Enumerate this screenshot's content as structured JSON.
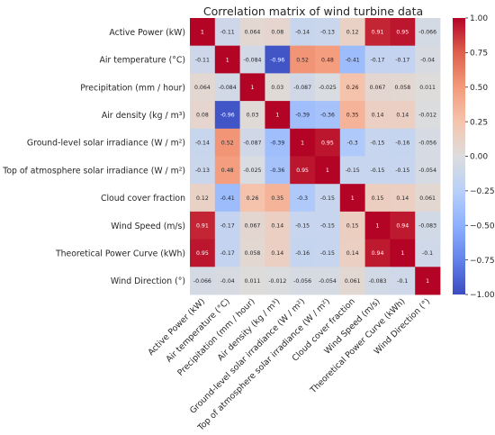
{
  "chart_data": {
    "type": "heatmap",
    "title": "Correlation matrix of wind turbine data",
    "labels": [
      "Active Power (kW)",
      "Air temperature (°C)",
      "Precipitation (mm / hour)",
      "Air density (kg / m³)",
      "Ground-level solar irradiance (W / m²)",
      "Top of atmosphere solar irradiance (W / m²)",
      "Cloud cover fraction",
      "Wind Speed (m/s)",
      "Theoretical Power Curve (kWh)",
      "Wind Direction (°)"
    ],
    "values": [
      [
        1,
        -0.11,
        0.064,
        0.08,
        -0.14,
        -0.13,
        0.12,
        0.91,
        0.95,
        -0.066
      ],
      [
        -0.11,
        1,
        -0.084,
        -0.96,
        0.52,
        0.48,
        -0.41,
        -0.17,
        -0.17,
        -0.04
      ],
      [
        0.064,
        -0.084,
        1,
        0.03,
        -0.087,
        -0.025,
        0.26,
        0.067,
        0.058,
        0.011
      ],
      [
        0.08,
        -0.96,
        0.03,
        1,
        -0.39,
        -0.36,
        0.35,
        0.14,
        0.14,
        -0.012
      ],
      [
        -0.14,
        0.52,
        -0.087,
        -0.39,
        1,
        0.95,
        -0.3,
        -0.15,
        -0.16,
        -0.056
      ],
      [
        -0.13,
        0.48,
        -0.025,
        -0.36,
        0.95,
        1,
        -0.15,
        -0.15,
        -0.15,
        -0.054
      ],
      [
        0.12,
        -0.41,
        0.26,
        0.35,
        -0.3,
        -0.15,
        1,
        0.15,
        0.14,
        0.061
      ],
      [
        0.91,
        -0.17,
        0.067,
        0.14,
        -0.15,
        -0.15,
        0.15,
        1,
        0.94,
        -0.083
      ],
      [
        0.95,
        -0.17,
        0.058,
        0.14,
        -0.16,
        -0.15,
        0.14,
        0.94,
        1,
        -0.1
      ],
      [
        -0.066,
        -0.04,
        0.011,
        -0.012,
        -0.056,
        -0.054,
        0.061,
        -0.083,
        -0.1,
        1
      ]
    ],
    "value_range": [
      -1,
      1
    ],
    "colormap": "coolwarm",
    "colorbar_ticks": [
      "-1.00",
      "-0.75",
      "-0.50",
      "-0.25",
      "0.00",
      "0.25",
      "0.50",
      "0.75",
      "1.00"
    ]
  }
}
